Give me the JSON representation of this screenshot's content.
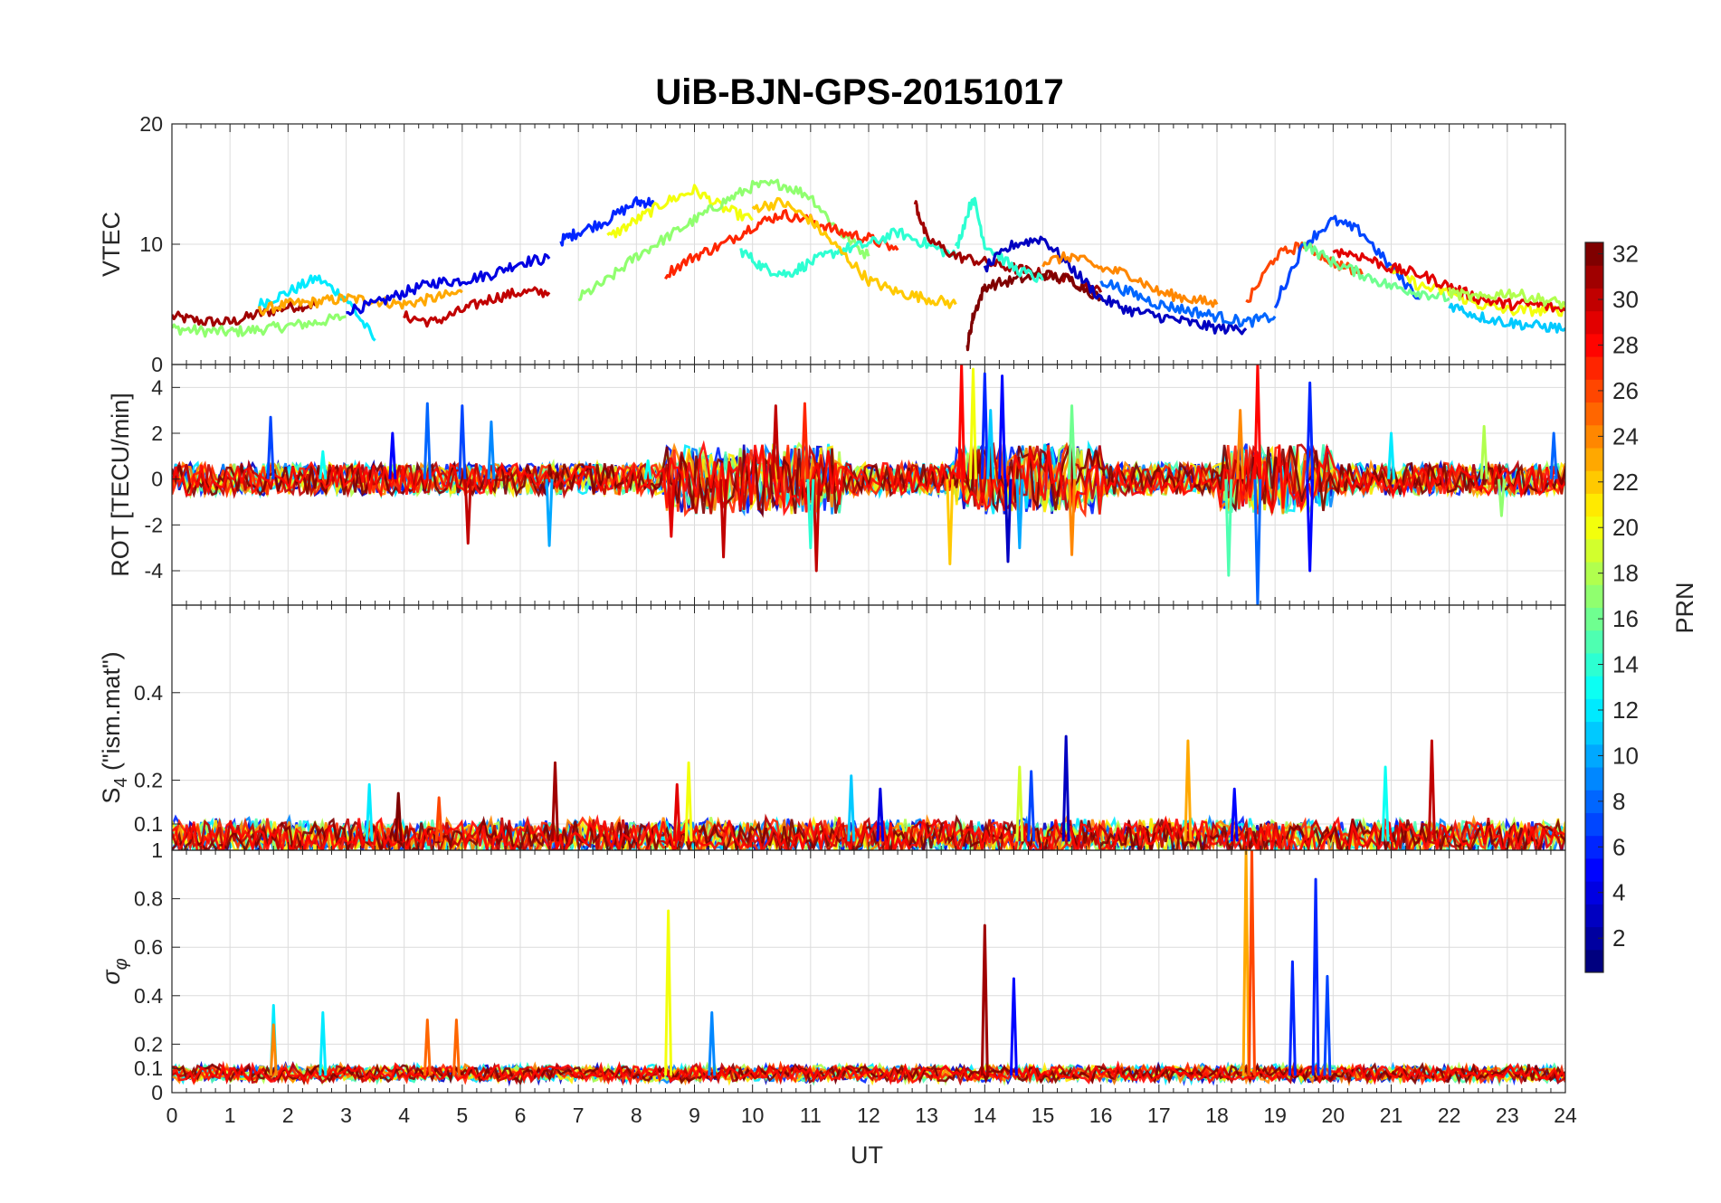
{
  "chart_data": {
    "type": "line",
    "title": "UiB-BJN-GPS-20151017",
    "xlabel": "UT",
    "xlim": [
      0,
      24
    ],
    "xticks": [
      "0",
      "1",
      "2",
      "3",
      "4",
      "5",
      "6",
      "7",
      "8",
      "9",
      "10",
      "11",
      "12",
      "13",
      "14",
      "15",
      "16",
      "17",
      "18",
      "19",
      "20",
      "21",
      "22",
      "23",
      "24"
    ],
    "grid": true,
    "colorbar": {
      "label": "PRN",
      "range": [
        1,
        32
      ],
      "ticks": [
        "2",
        "4",
        "6",
        "8",
        "10",
        "12",
        "14",
        "16",
        "18",
        "20",
        "22",
        "24",
        "26",
        "28",
        "30",
        "32"
      ],
      "colormap": [
        "#00007f",
        "#0000ff",
        "#007fff",
        "#00ffff",
        "#7fff7f",
        "#ffff00",
        "#ff7f00",
        "#ff0000",
        "#7f0000"
      ]
    },
    "panels": [
      {
        "id": "vtec",
        "ylabel": "VTEC",
        "ylim": [
          0,
          20
        ],
        "yticks": [
          "0",
          "10",
          "20"
        ],
        "series": [
          {
            "prn": 31,
            "x": [
              0,
              0.5,
              1,
              1.5,
              2,
              2.5
            ],
            "y": [
              4,
              3.6,
              3.5,
              4.2,
              4.8,
              5.0
            ]
          },
          {
            "prn": 17,
            "x": [
              0,
              0.5,
              1,
              1.5,
              2,
              2.5,
              3
            ],
            "y": [
              3.0,
              2.8,
              2.7,
              2.9,
              3.2,
              3.5,
              4.0
            ]
          },
          {
            "prn": 12,
            "x": [
              1.5,
              2,
              2.5,
              3,
              3.5
            ],
            "y": [
              5.0,
              6.0,
              7.2,
              5.5,
              2.0
            ]
          },
          {
            "prn": 23,
            "x": [
              1.5,
              2,
              2.5,
              3,
              3.5,
              4,
              4.5,
              5
            ],
            "y": [
              4.5,
              5.0,
              5.2,
              5.5,
              5.3,
              5.0,
              5.5,
              6.0
            ]
          },
          {
            "prn": 4,
            "x": [
              3,
              3.5,
              4,
              4.5,
              5,
              5.5,
              6,
              6.5
            ],
            "y": [
              4.5,
              5.0,
              6.0,
              6.8,
              7.0,
              7.5,
              8.5,
              8.8
            ]
          },
          {
            "prn": 30,
            "x": [
              4,
              4.5,
              5,
              5.5,
              6,
              6.5
            ],
            "y": [
              4.0,
              3.5,
              4.5,
              5.5,
              6.0,
              6.0
            ]
          },
          {
            "prn": 6,
            "x": [
              6.7,
              7,
              7.5,
              8,
              8.3
            ],
            "y": [
              10.3,
              11.0,
              12.0,
              13.5,
              13.5
            ]
          },
          {
            "prn": 20,
            "x": [
              7.5,
              8,
              8.5,
              9,
              9.5,
              10
            ],
            "y": [
              10.5,
              12.0,
              13.5,
              14.5,
              13.0,
              12.0
            ]
          },
          {
            "prn": 17,
            "x": [
              7,
              7.5,
              8,
              8.5,
              9,
              9.5,
              10,
              10.5,
              11,
              11.5,
              12
            ],
            "y": [
              5.5,
              7.0,
              9.0,
              10.5,
              12.0,
              13.5,
              14.8,
              15.0,
              14.0,
              11.0,
              9.0
            ]
          },
          {
            "prn": 27,
            "x": [
              8.5,
              9,
              9.5,
              10,
              10.5,
              11,
              11.5,
              12,
              12.5
            ],
            "y": [
              7.5,
              9.0,
              10.0,
              11.5,
              12.5,
              12.0,
              11.0,
              10.5,
              9.5
            ]
          },
          {
            "prn": 14,
            "x": [
              9.8,
              10.2,
              10.6,
              11,
              11.5,
              12,
              12.5,
              13,
              13.5
            ],
            "y": [
              9.5,
              8.0,
              7.5,
              8.5,
              9.5,
              10.0,
              11.0,
              10.0,
              9.0
            ]
          },
          {
            "prn": 22,
            "x": [
              10,
              10.5,
              11,
              11.5,
              12,
              12.5,
              13,
              13.5
            ],
            "y": [
              13.0,
              13.5,
              12.0,
              9.5,
              7.0,
              6.0,
              5.5,
              5.0
            ]
          },
          {
            "prn": 31,
            "x": [
              12.8,
              13,
              13.5,
              14,
              14.5,
              15,
              15.5,
              16
            ],
            "y": [
              13.5,
              10.5,
              9.0,
              8.5,
              8.0,
              7.5,
              7.0,
              6.0
            ]
          },
          {
            "prn": 32,
            "x": [
              13.7,
              13.8,
              14,
              14.5,
              15,
              15.5,
              16
            ],
            "y": [
              1.5,
              4.0,
              6.5,
              7.0,
              7.5,
              7.0,
              5.5
            ]
          },
          {
            "prn": 14,
            "x": [
              13.5,
              13.8,
              14,
              14.5,
              15
            ],
            "y": [
              9.5,
              14.0,
              10.0,
              8.0,
              7.0
            ]
          },
          {
            "prn": 3,
            "x": [
              14,
              14.5,
              15,
              15.5,
              16,
              16.5,
              17,
              17.5,
              18,
              18.5
            ],
            "y": [
              8.0,
              10.0,
              10.5,
              8.0,
              5.5,
              4.5,
              4.0,
              3.5,
              3.0,
              3.0
            ]
          },
          {
            "prn": 24,
            "x": [
              15,
              15.5,
              16,
              16.5,
              17,
              17.5,
              18
            ],
            "y": [
              8.5,
              9.0,
              8.0,
              7.5,
              6.0,
              5.5,
              5.0
            ]
          },
          {
            "prn": 8,
            "x": [
              16,
              16.5,
              17,
              17.5,
              18,
              18.5,
              19
            ],
            "y": [
              7.0,
              6.0,
              5.0,
              4.5,
              4.0,
              3.5,
              4.0
            ]
          },
          {
            "prn": 26,
            "x": [
              18.5,
              19,
              19.5,
              20,
              20.5
            ],
            "y": [
              5.0,
              9.0,
              10.0,
              8.5,
              7.5
            ]
          },
          {
            "prn": 7,
            "x": [
              19,
              19.5,
              20,
              20.5,
              21,
              21.5
            ],
            "y": [
              5.0,
              10.0,
              12.0,
              11.0,
              8.0,
              5.5
            ]
          },
          {
            "prn": 16,
            "x": [
              19.5,
              20,
              20.5,
              21,
              21.5,
              22
            ],
            "y": [
              10.0,
              8.5,
              7.5,
              6.5,
              6.0,
              5.5
            ]
          },
          {
            "prn": 20,
            "x": [
              21,
              21.5,
              22,
              22.5,
              23,
              23.5,
              24
            ],
            "y": [
              8.0,
              6.5,
              6.0,
              5.0,
              4.5,
              4.5,
              4.5
            ]
          },
          {
            "prn": 29,
            "x": [
              20,
              20.5,
              21,
              21.5,
              22,
              22.5,
              23,
              23.5,
              24
            ],
            "y": [
              9.5,
              9.0,
              8.0,
              7.5,
              6.5,
              5.5,
              5.0,
              5.0,
              4.5
            ]
          },
          {
            "prn": 11,
            "x": [
              22,
              22.5,
              23,
              23.5,
              24
            ],
            "y": [
              5.0,
              4.0,
              3.5,
              3.2,
              3.0
            ]
          },
          {
            "prn": 18,
            "x": [
              22,
              22.5,
              23,
              23.5,
              24
            ],
            "y": [
              6.0,
              5.5,
              6.0,
              5.5,
              5.0
            ]
          }
        ]
      },
      {
        "id": "rot",
        "ylabel": "ROT [TECU/min]",
        "ylim": [
          -5.5,
          5
        ],
        "yticks": [
          "-4",
          "-2",
          "0",
          "2",
          "4"
        ],
        "spikes": [
          {
            "prn": 7,
            "x": 1.7,
            "y": 2.7
          },
          {
            "prn": 13,
            "x": 2.6,
            "y": 1.2
          },
          {
            "prn": 5,
            "x": 3.8,
            "y": 2.0
          },
          {
            "prn": 8,
            "x": 4.4,
            "y": 3.3
          },
          {
            "prn": 7,
            "x": 5.0,
            "y": 3.2
          },
          {
            "prn": 30,
            "x": 5.1,
            "y": -2.8
          },
          {
            "prn": 9,
            "x": 5.5,
            "y": 2.5
          },
          {
            "prn": 10,
            "x": 6.5,
            "y": -2.9
          },
          {
            "prn": 13,
            "x": 8.2,
            "y": 0.8
          },
          {
            "prn": 29,
            "x": 8.6,
            "y": -2.5
          },
          {
            "prn": 30,
            "x": 9.5,
            "y": -3.4
          },
          {
            "prn": 30,
            "x": 10.4,
            "y": 3.2
          },
          {
            "prn": 27,
            "x": 10.9,
            "y": 3.3
          },
          {
            "prn": 30,
            "x": 11.1,
            "y": -4.0
          },
          {
            "prn": 14,
            "x": 11.0,
            "y": -3.0
          },
          {
            "prn": 22,
            "x": 13.4,
            "y": -3.7
          },
          {
            "prn": 28,
            "x": 13.6,
            "y": 5.0
          },
          {
            "prn": 20,
            "x": 13.8,
            "y": 4.8
          },
          {
            "prn": 6,
            "x": 14.0,
            "y": 4.6
          },
          {
            "prn": 5,
            "x": 14.3,
            "y": 4.5
          },
          {
            "prn": 11,
            "x": 14.1,
            "y": 3.0
          },
          {
            "prn": 3,
            "x": 14.4,
            "y": -3.6
          },
          {
            "prn": 10,
            "x": 14.6,
            "y": -3.0
          },
          {
            "prn": 24,
            "x": 15.5,
            "y": -3.3
          },
          {
            "prn": 16,
            "x": 15.5,
            "y": 3.2
          },
          {
            "prn": 15,
            "x": 18.2,
            "y": -4.2
          },
          {
            "prn": 8,
            "x": 18.7,
            "y": -5.5
          },
          {
            "prn": 28,
            "x": 18.7,
            "y": 5.0
          },
          {
            "prn": 24,
            "x": 18.4,
            "y": 3.0
          },
          {
            "prn": 6,
            "x": 19.6,
            "y": 4.2
          },
          {
            "prn": 5,
            "x": 19.6,
            "y": -4.0
          },
          {
            "prn": 12,
            "x": 21.0,
            "y": 2.0
          },
          {
            "prn": 18,
            "x": 22.6,
            "y": 2.3
          },
          {
            "prn": 17,
            "x": 22.9,
            "y": -1.6
          },
          {
            "prn": 8,
            "x": 23.8,
            "y": 2.0
          }
        ]
      },
      {
        "id": "s4",
        "ylabel": "S",
        "ylabel_sub": "4",
        "ylabel_suffix": " (\"ism.mat\")",
        "ylim": [
          0.04,
          0.6
        ],
        "yticks": [
          "0.1",
          "0.2",
          "0.4"
        ],
        "spikes": [
          {
            "prn": 12,
            "x": 3.4,
            "y": 0.19
          },
          {
            "prn": 32,
            "x": 3.9,
            "y": 0.17
          },
          {
            "prn": 26,
            "x": 4.6,
            "y": 0.16
          },
          {
            "prn": 31,
            "x": 6.6,
            "y": 0.24
          },
          {
            "prn": 20,
            "x": 8.9,
            "y": 0.24
          },
          {
            "prn": 29,
            "x": 8.7,
            "y": 0.19
          },
          {
            "prn": 11,
            "x": 11.7,
            "y": 0.21
          },
          {
            "prn": 4,
            "x": 12.2,
            "y": 0.18
          },
          {
            "prn": 7,
            "x": 14.8,
            "y": 0.22
          },
          {
            "prn": 3,
            "x": 15.4,
            "y": 0.3
          },
          {
            "prn": 19,
            "x": 14.6,
            "y": 0.23
          },
          {
            "prn": 23,
            "x": 17.5,
            "y": 0.29
          },
          {
            "prn": 5,
            "x": 18.3,
            "y": 0.18
          },
          {
            "prn": 13,
            "x": 20.9,
            "y": 0.23
          },
          {
            "prn": 30,
            "x": 21.7,
            "y": 0.29
          }
        ]
      },
      {
        "id": "sigma_phi",
        "ylabel": "σφ",
        "ylim": [
          0,
          1
        ],
        "yticks": [
          "0",
          "0.1",
          "0.2",
          "0.4",
          "0.6",
          "0.8",
          "1"
        ],
        "spikes": [
          {
            "prn": 12,
            "x": 1.75,
            "y": 0.36
          },
          {
            "prn": 24,
            "x": 1.75,
            "y": 0.28
          },
          {
            "prn": 12,
            "x": 2.6,
            "y": 0.33
          },
          {
            "prn": 25,
            "x": 4.4,
            "y": 0.3
          },
          {
            "prn": 25,
            "x": 4.9,
            "y": 0.3
          },
          {
            "prn": 20,
            "x": 8.55,
            "y": 0.75
          },
          {
            "prn": 9,
            "x": 9.3,
            "y": 0.33
          },
          {
            "prn": 31,
            "x": 14.0,
            "y": 0.69
          },
          {
            "prn": 5,
            "x": 14.5,
            "y": 0.47
          },
          {
            "prn": 23,
            "x": 18.5,
            "y": 1.0
          },
          {
            "prn": 26,
            "x": 18.6,
            "y": 1.0
          },
          {
            "prn": 6,
            "x": 19.3,
            "y": 0.54
          },
          {
            "prn": 6,
            "x": 19.7,
            "y": 0.88
          },
          {
            "prn": 7,
            "x": 19.9,
            "y": 0.48
          }
        ]
      }
    ]
  }
}
